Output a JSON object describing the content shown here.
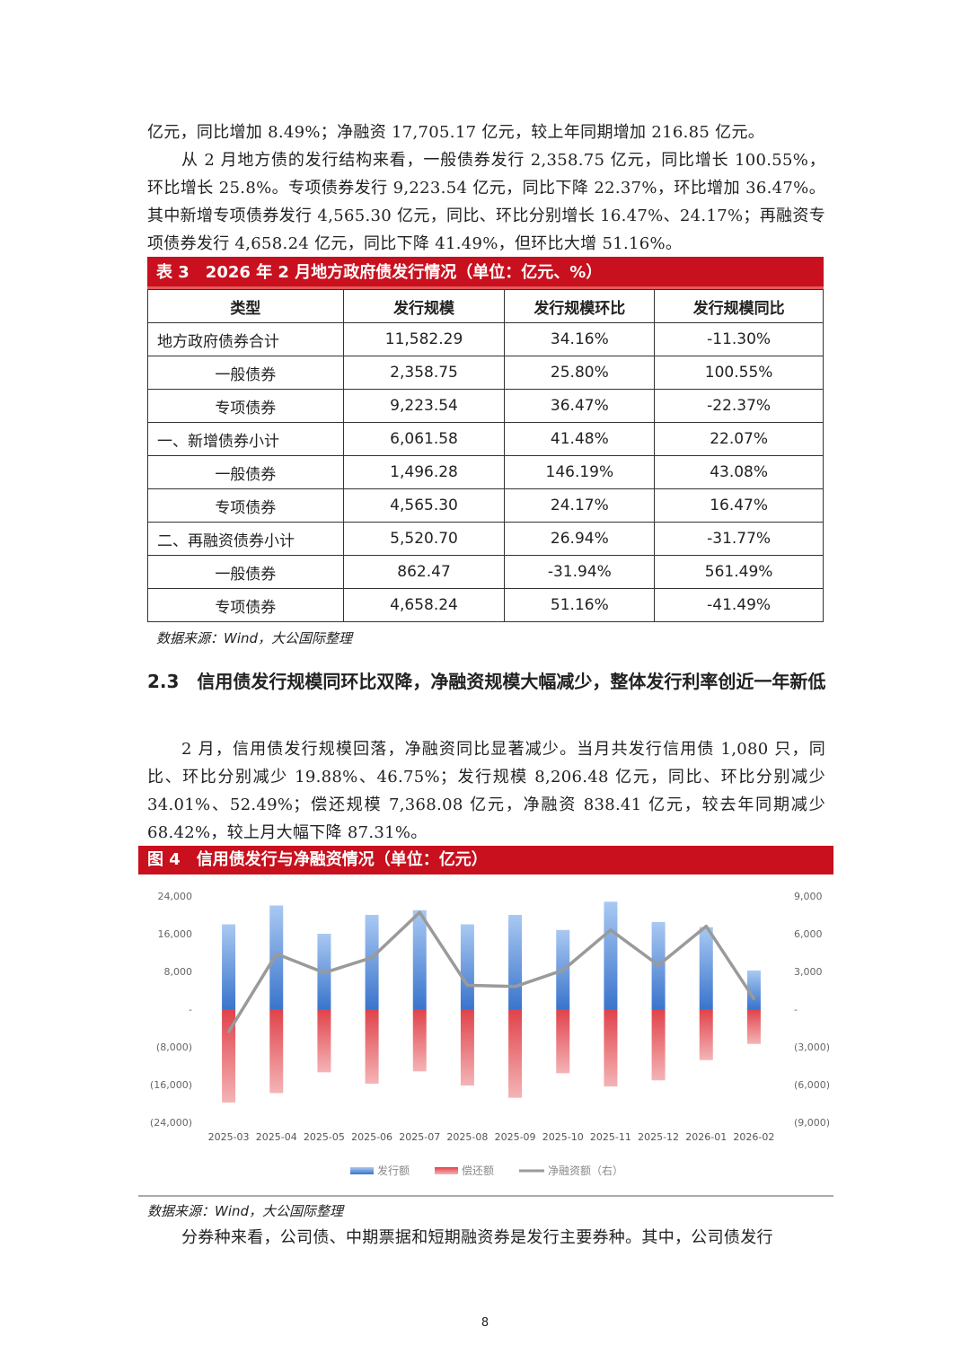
{
  "paragraphs": {
    "p1": "亿元，同比增加 8.49%；净融资 17,705.17 亿元，较上年同期增加 216.85 亿元。",
    "p2": "从 2 月地方债的发行结构来看，一般债券发行 2,358.75 亿元，同比增长 100.55%，环比增长 25.8%。专项债券发行 9,223.54 亿元，同比下降 22.37%，环比增加 36.47%。其中新增专项债券发行 4,565.30 亿元，同比、环比分别增长 16.47%、24.17%；再融资专项债券发行 4,658.24 亿元，同比下降 41.49%，但环比大增 51.16%。",
    "p3": "2 月，信用债发行规模回落，净融资同比显著减少。当月共发行信用债 1,080 只，同比、环比分别减少 19.88%、46.75%；发行规模 8,206.48 亿元，同比、环比分别减少 34.01%、52.49%；偿还规模 7,368.08 亿元，净融资 838.41 亿元，较去年同期减少 68.42%，较上月大幅下降 87.31%。",
    "p4": "分券种来看，公司债、中期票据和短期融资券是发行主要券种。其中，公司债发行"
  },
  "table3": {
    "title": "表 3　2026 年 2 月地方政府债发行情况（单位：亿元、%）",
    "headers": [
      "类型",
      "发行规模",
      "发行规模环比",
      "发行规模同比"
    ],
    "rows": [
      [
        "地方政府债券合计",
        "11,582.29",
        "34.16%",
        "-11.30%"
      ],
      [
        "一般债券",
        "2,358.75",
        "25.80%",
        "100.55%"
      ],
      [
        "专项债券",
        "9,223.54",
        "36.47%",
        "-22.37%"
      ],
      [
        "一、新增债券小计",
        "6,061.58",
        "41.48%",
        "22.07%"
      ],
      [
        "一般债券",
        "1,496.28",
        "146.19%",
        "43.08%"
      ],
      [
        "专项债券",
        "4,565.30",
        "24.17%",
        "16.47%"
      ],
      [
        "二、再融资债券小计",
        "5,520.70",
        "26.94%",
        "-31.77%"
      ],
      [
        "一般债券",
        "862.47",
        "-31.94%",
        "561.49%"
      ],
      [
        "专项债券",
        "4,658.24",
        "51.16%",
        "-41.49%"
      ]
    ],
    "source": "数据来源：Wind，大公国际整理"
  },
  "section_heading": "2.3　信用债发行规模同环比双降，净融资规模大幅减少，整体发行利率创近一年新低",
  "chart_data": {
    "type": "bar",
    "title": "图 4　信用债发行与净融资情况（单位：亿元）",
    "categories": [
      "2025-03",
      "2025-04",
      "2025-05",
      "2025-06",
      "2025-07",
      "2025-08",
      "2025-09",
      "2025-10",
      "2025-11",
      "2025-12",
      "2026-01",
      "2026-02"
    ],
    "series": [
      {
        "name": "发行额",
        "type": "bar",
        "axis": "left",
        "color": "#4a86d8",
        "values": [
          18000,
          22000,
          16000,
          20000,
          21000,
          18000,
          20000,
          16800,
          22800,
          18500,
          17400,
          8206
        ]
      },
      {
        "name": "偿还额",
        "type": "bar",
        "axis": "left",
        "color": "#e0424a",
        "values": [
          -19800,
          -17800,
          -13400,
          -15800,
          -13200,
          -16200,
          -18800,
          -13600,
          -16400,
          -15100,
          -10800,
          -7368
        ]
      },
      {
        "name": "净融资额（右）",
        "type": "line",
        "axis": "right",
        "color": "#9a9a9a",
        "values": [
          -1800,
          4400,
          2900,
          4100,
          7700,
          1900,
          1800,
          3100,
          6300,
          3500,
          6600,
          838
        ]
      }
    ],
    "y_left": {
      "min": -24000,
      "max": 24000,
      "step": 8000,
      "tick_labels": [
        "(24,000)",
        "(16,000)",
        "(8,000)",
        "-",
        "8,000",
        "16,000",
        "24,000"
      ]
    },
    "y_right": {
      "min": -9000,
      "max": 9000,
      "step": 3000,
      "tick_labels": [
        "(9,000)",
        "(6,000)",
        "(3,000)",
        "-",
        "3,000",
        "6,000",
        "9,000"
      ]
    },
    "legend_position": "bottom",
    "grid": false,
    "source": "数据来源：Wind，大公国际整理"
  },
  "page_number": "8"
}
